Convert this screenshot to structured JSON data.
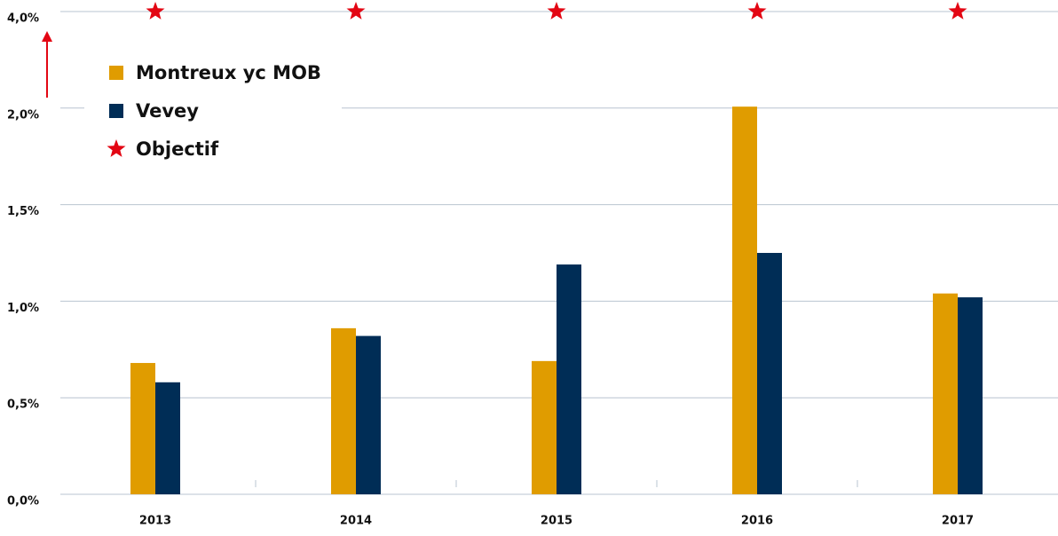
{
  "chart_data": {
    "type": "bar",
    "categories": [
      "2013",
      "2014",
      "2015",
      "2016",
      "2017"
    ],
    "series": [
      {
        "name": "Montreux yc MOB",
        "color": "#e09c00",
        "values": [
          0.68,
          0.86,
          0.69,
          2.03,
          1.04
        ]
      },
      {
        "name": "Vevey",
        "color": "#002d56",
        "values": [
          0.58,
          0.82,
          1.19,
          1.25,
          1.02
        ]
      },
      {
        "name": "Objectif",
        "color": "#e30613",
        "type": "star",
        "values": [
          4,
          4,
          4,
          4,
          4
        ]
      }
    ],
    "ylim": [
      0,
      4
    ],
    "yticks": [
      {
        "value": 0,
        "label": "0,0%"
      },
      {
        "value": 0.5,
        "label": "0,5%"
      },
      {
        "value": 1,
        "label": "1,0%"
      },
      {
        "value": 1.5,
        "label": "1,5%"
      },
      {
        "value": 2,
        "label": "2,0%"
      },
      {
        "value": 4,
        "label": "4,0%"
      }
    ],
    "grid": true
  }
}
